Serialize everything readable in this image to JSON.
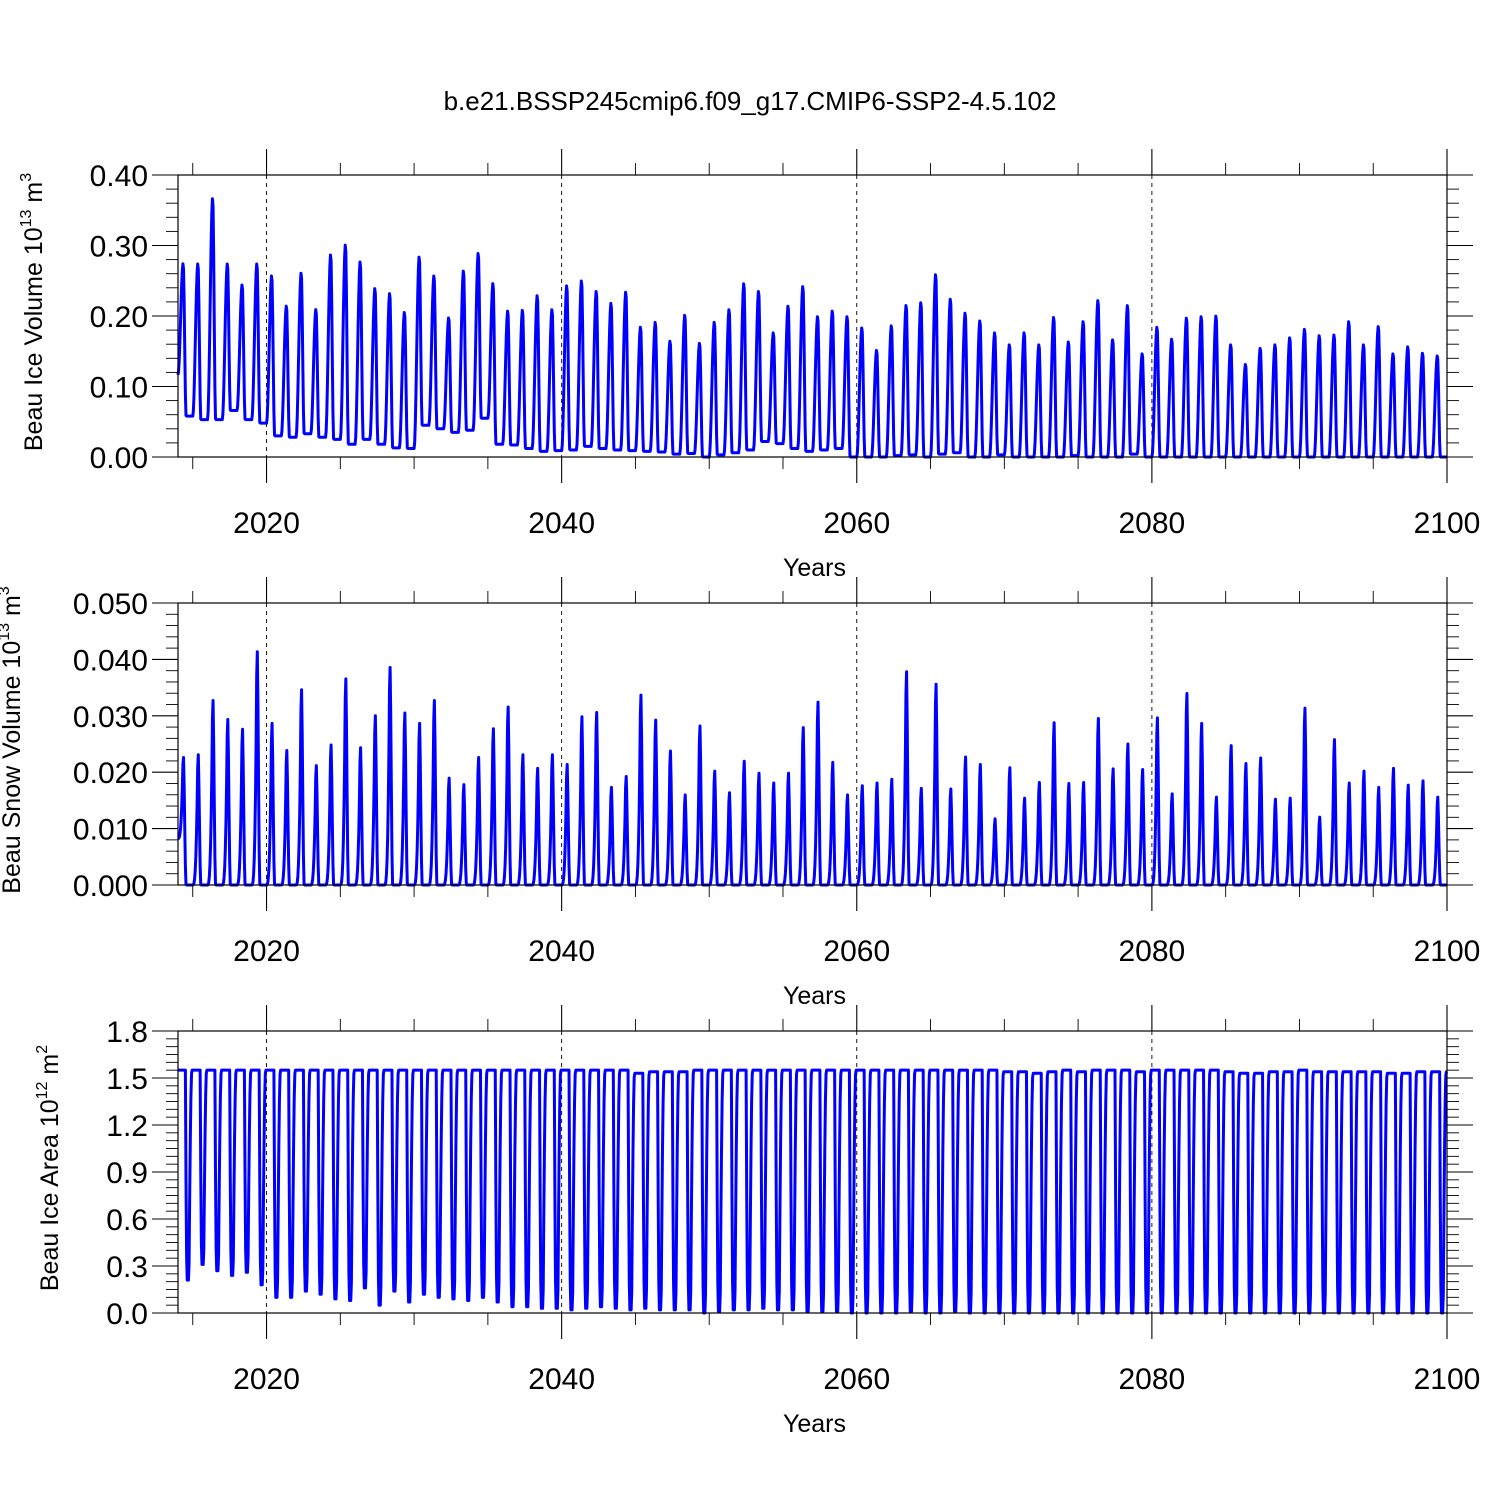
{
  "title": "b.e21.BSSP245cmip6.f09_g17.CMIP6-SSP2-4.5.102",
  "colors": {
    "series": "#0000ff",
    "axes": "#000000",
    "background": "#ffffff"
  },
  "chart_data": [
    {
      "type": "line",
      "ylabel": "Beau Ice Volume 10",
      "ylabel_exp": "13",
      "ylabel_unit": "m",
      "ylabel_unit_exp": "3",
      "xlabel": "Years",
      "xlim": [
        2014,
        2100
      ],
      "ylim": [
        0.0,
        0.4
      ],
      "x_ticks": [
        2020,
        2040,
        2060,
        2080,
        2100
      ],
      "x_tick_labels": [
        "2020",
        "2040",
        "2060",
        "2080",
        "2100"
      ],
      "y_ticks": [
        0.0,
        0.1,
        0.2,
        0.3,
        0.4
      ],
      "y_tick_labels": [
        "0.00",
        "0.10",
        "0.20",
        "0.30",
        "0.40"
      ],
      "grid": "dashed vertical at major x ticks",
      "series": [
        {
          "x_start": 2014,
          "x_step": 1,
          "peaks": [
            0.275,
            0.275,
            0.368,
            0.275,
            0.245,
            0.275,
            0.258,
            0.215,
            0.262,
            0.21,
            0.288,
            0.302,
            0.278,
            0.24,
            0.233,
            0.206,
            0.285,
            0.258,
            0.198,
            0.265,
            0.29,
            0.247,
            0.208,
            0.209,
            0.23,
            0.21,
            0.244,
            0.251,
            0.236,
            0.219,
            0.235,
            0.185,
            0.192,
            0.165,
            0.202,
            0.162,
            0.192,
            0.21,
            0.247,
            0.236,
            0.177,
            0.215,
            0.243,
            0.2,
            0.208,
            0.2,
            0.184,
            0.152,
            0.187,
            0.216,
            0.22,
            0.26,
            0.225,
            0.205,
            0.194,
            0.177,
            0.16,
            0.177,
            0.16,
            0.199,
            0.164,
            0.193,
            0.223,
            0.167,
            0.216,
            0.147,
            0.185,
            0.168,
            0.198,
            0.2,
            0.201,
            0.16,
            0.132,
            0.155,
            0.16,
            0.17,
            0.182,
            0.173,
            0.174,
            0.193,
            0.16,
            0.186,
            0.147,
            0.157,
            0.148,
            0.144
          ],
          "troughs": [
            0.058,
            0.053,
            0.053,
            0.066,
            0.053,
            0.048,
            0.03,
            0.028,
            0.033,
            0.028,
            0.025,
            0.018,
            0.025,
            0.018,
            0.013,
            0.012,
            0.045,
            0.04,
            0.035,
            0.038,
            0.055,
            0.018,
            0.017,
            0.012,
            0.008,
            0.009,
            0.01,
            0.015,
            0.012,
            0.01,
            0.009,
            0.008,
            0.007,
            0.004,
            0.005,
            0.0,
            0.003,
            0.006,
            0.01,
            0.022,
            0.019,
            0.012,
            0.008,
            0.01,
            0.012,
            0.0,
            0.0,
            0.0,
            0.002,
            0.003,
            0.0,
            0.004,
            0.006,
            0.0,
            0.0,
            0.003,
            0.0,
            0.0,
            0.0,
            0.0,
            0.002,
            0.0,
            0.0,
            0.0,
            0.004,
            0.0,
            0.0,
            0.0,
            0.0,
            0.0,
            0.0,
            0.0,
            0.0,
            0.0,
            0.0,
            0.0,
            0.0,
            0.0,
            0.0,
            0.0,
            0.0,
            0.0,
            0.0,
            0.0,
            0.0,
            0.0
          ]
        }
      ]
    },
    {
      "type": "line",
      "ylabel": "Beau Snow Volume 10",
      "ylabel_exp": "13",
      "ylabel_unit": "m",
      "ylabel_unit_exp": "3",
      "xlabel": "Years",
      "xlim": [
        2014,
        2100
      ],
      "ylim": [
        0.0,
        0.05
      ],
      "x_ticks": [
        2020,
        2040,
        2060,
        2080,
        2100
      ],
      "x_tick_labels": [
        "2020",
        "2040",
        "2060",
        "2080",
        "2100"
      ],
      "y_ticks": [
        0.0,
        0.01,
        0.02,
        0.03,
        0.04,
        0.05
      ],
      "y_tick_labels": [
        "0.000",
        "0.010",
        "0.020",
        "0.030",
        "0.040",
        "0.050"
      ],
      "grid": "dashed vertical at major x ticks",
      "series": [
        {
          "x_start": 2014,
          "x_step": 1,
          "peaks": [
            0.0235,
            0.024,
            0.034,
            0.0305,
            0.0287,
            0.043,
            0.0298,
            0.0248,
            0.036,
            0.022,
            0.0258,
            0.038,
            0.0253,
            0.0312,
            0.0401,
            0.0317,
            0.0298,
            0.034,
            0.0197,
            0.0185,
            0.0235,
            0.0288,
            0.0328,
            0.024,
            0.0215,
            0.024,
            0.0222,
            0.031,
            0.0318,
            0.018,
            0.02,
            0.035,
            0.0304,
            0.0247,
            0.0166,
            0.0293,
            0.021,
            0.017,
            0.0228,
            0.0206,
            0.0188,
            0.0206,
            0.029,
            0.0337,
            0.0226,
            0.0166,
            0.0183,
            0.0188,
            0.0195,
            0.0393,
            0.0178,
            0.037,
            0.0177,
            0.0236,
            0.0222,
            0.0122,
            0.0216,
            0.016,
            0.0189,
            0.0299,
            0.0187,
            0.0189,
            0.0307,
            0.0214,
            0.026,
            0.0213,
            0.0308,
            0.0168,
            0.0353,
            0.0298,
            0.0162,
            0.0257,
            0.0224,
            0.0234,
            0.0158,
            0.016,
            0.0326,
            0.0125,
            0.0268,
            0.0188,
            0.021,
            0.018,
            0.0215,
            0.0184,
            0.0192,
            0.0162
          ],
          "troughs": [
            0.0,
            0.0,
            0.0,
            0.0,
            0.0,
            0.0,
            0.0,
            0.0,
            0.0,
            0.0,
            0.0,
            0.0,
            0.0,
            0.0,
            0.0,
            0.0,
            0.0,
            0.0,
            0.0,
            0.0,
            0.0,
            0.0,
            0.0,
            0.0,
            0.0,
            0.0,
            0.0,
            0.0,
            0.0,
            0.0,
            0.0,
            0.0,
            0.0,
            0.0,
            0.0,
            0.0,
            0.0,
            0.0,
            0.0,
            0.0,
            0.0,
            0.0,
            0.0,
            0.0,
            0.0,
            0.0,
            0.0,
            0.0,
            0.0,
            0.0,
            0.0,
            0.0,
            0.0,
            0.0,
            0.0,
            0.0,
            0.0,
            0.0,
            0.0,
            0.0,
            0.0,
            0.0,
            0.0,
            0.0,
            0.0,
            0.0,
            0.0,
            0.0,
            0.0,
            0.0,
            0.0,
            0.0,
            0.0,
            0.0,
            0.0,
            0.0,
            0.0,
            0.0,
            0.0,
            0.0,
            0.0,
            0.0,
            0.0,
            0.0,
            0.0,
            0.0
          ]
        }
      ]
    },
    {
      "type": "line",
      "ylabel": "Beau Ice Area 10",
      "ylabel_exp": "12",
      "ylabel_unit": "m",
      "ylabel_unit_exp": "2",
      "xlabel": "Years",
      "xlim": [
        2014,
        2100
      ],
      "ylim": [
        0.0,
        1.8
      ],
      "x_ticks": [
        2020,
        2040,
        2060,
        2080,
        2100
      ],
      "x_tick_labels": [
        "2020",
        "2040",
        "2060",
        "2080",
        "2100"
      ],
      "y_ticks": [
        0.0,
        0.3,
        0.6,
        0.9,
        1.2,
        1.5,
        1.8
      ],
      "y_tick_labels": [
        "0.0",
        "0.3",
        "0.6",
        "0.9",
        "1.2",
        "1.5",
        "1.8"
      ],
      "grid": "dashed vertical at major x ticks",
      "series": [
        {
          "x_start": 2014,
          "x_step": 1,
          "peaks": [
            1.55,
            1.55,
            1.55,
            1.55,
            1.55,
            1.55,
            1.55,
            1.55,
            1.55,
            1.55,
            1.55,
            1.55,
            1.55,
            1.55,
            1.55,
            1.55,
            1.55,
            1.55,
            1.55,
            1.55,
            1.55,
            1.55,
            1.55,
            1.55,
            1.55,
            1.55,
            1.55,
            1.55,
            1.55,
            1.55,
            1.55,
            1.53,
            1.54,
            1.54,
            1.54,
            1.55,
            1.55,
            1.55,
            1.55,
            1.55,
            1.55,
            1.55,
            1.55,
            1.55,
            1.55,
            1.55,
            1.55,
            1.55,
            1.55,
            1.55,
            1.55,
            1.55,
            1.55,
            1.55,
            1.55,
            1.55,
            1.54,
            1.54,
            1.53,
            1.54,
            1.55,
            1.54,
            1.55,
            1.55,
            1.55,
            1.54,
            1.55,
            1.55,
            1.55,
            1.55,
            1.55,
            1.54,
            1.53,
            1.53,
            1.54,
            1.54,
            1.55,
            1.54,
            1.54,
            1.54,
            1.54,
            1.54,
            1.53,
            1.53,
            1.54,
            1.54
          ],
          "troughs": [
            0.21,
            0.31,
            0.27,
            0.24,
            0.26,
            0.18,
            0.1,
            0.1,
            0.14,
            0.12,
            0.09,
            0.08,
            0.16,
            0.05,
            0.14,
            0.07,
            0.12,
            0.1,
            0.09,
            0.08,
            0.1,
            0.07,
            0.04,
            0.04,
            0.03,
            0.03,
            0.02,
            0.03,
            0.04,
            0.03,
            0.02,
            0.03,
            0.02,
            0.02,
            0.02,
            0.0,
            0.01,
            0.02,
            0.02,
            0.03,
            0.02,
            0.02,
            0.01,
            0.01,
            0.01,
            0.0,
            0.0,
            0.0,
            0.0,
            0.01,
            0.0,
            0.0,
            0.01,
            0.0,
            0.0,
            0.0,
            0.0,
            0.0,
            0.0,
            0.0,
            0.0,
            0.0,
            0.0,
            0.0,
            0.0,
            0.0,
            0.0,
            0.0,
            0.0,
            0.0,
            0.0,
            0.0,
            0.0,
            0.0,
            0.0,
            0.0,
            0.0,
            0.0,
            0.0,
            0.0,
            0.0,
            0.0,
            0.0,
            0.0,
            0.0,
            0.0
          ]
        }
      ]
    }
  ]
}
